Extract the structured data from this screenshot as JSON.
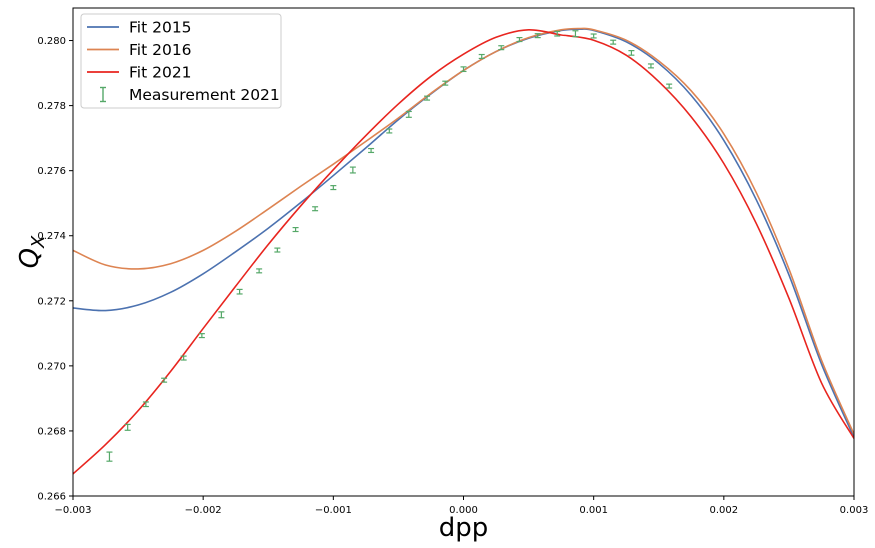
{
  "chart_data": {
    "type": "line",
    "title": "",
    "xlabel": "dpp",
    "ylabel": "Q",
    "ylabel_subscript": "X",
    "xlim": [
      -0.003,
      0.003
    ],
    "ylim": [
      0.266,
      0.281
    ],
    "xticks": [
      -0.003,
      -0.002,
      -0.001,
      0.0,
      0.001,
      0.002,
      0.003
    ],
    "xtick_labels": [
      "−0.003",
      "−0.002",
      "−0.001",
      "0.000",
      "0.001",
      "0.002",
      "0.003"
    ],
    "yticks": [
      0.266,
      0.268,
      0.27,
      0.272,
      0.274,
      0.276,
      0.278,
      0.28
    ],
    "ytick_labels": [
      "0.266",
      "0.268",
      "0.270",
      "0.272",
      "0.274",
      "0.276",
      "0.278",
      "0.280"
    ],
    "grid": false,
    "legend_position": "top-left",
    "series": [
      {
        "name": "Fit 2015",
        "kind": "line",
        "color": "#4c72b0",
        "x": [
          -0.003,
          -0.00275,
          -0.0025,
          -0.00225,
          -0.002,
          -0.00175,
          -0.0015,
          -0.00125,
          -0.001,
          -0.00075,
          -0.0005,
          -0.00025,
          0.0,
          0.00025,
          0.0005,
          0.00075,
          0.0009,
          0.001,
          0.00125,
          0.0015,
          0.00175,
          0.002,
          0.00225,
          0.0025,
          0.00275,
          0.003
        ],
        "y": [
          0.27178,
          0.2717,
          0.27187,
          0.27226,
          0.27283,
          0.27351,
          0.27423,
          0.27502,
          0.27585,
          0.2767,
          0.27757,
          0.27836,
          0.27908,
          0.27966,
          0.28007,
          0.28031,
          0.28035,
          0.28031,
          0.27996,
          0.2793,
          0.27831,
          0.27693,
          0.2751,
          0.2728,
          0.27006,
          0.2678
        ]
      },
      {
        "name": "Fit 2016",
        "kind": "line",
        "color": "#dd8452",
        "x": [
          -0.003,
          -0.00275,
          -0.0025,
          -0.00225,
          -0.002,
          -0.00175,
          -0.0015,
          -0.00125,
          -0.001,
          -0.00075,
          -0.0005,
          -0.00025,
          0.0,
          0.00025,
          0.0005,
          0.00075,
          0.0009,
          0.001,
          0.00125,
          0.0015,
          0.00175,
          0.002,
          0.00225,
          0.0025,
          0.00275,
          0.003
        ],
        "y": [
          0.27355,
          0.2731,
          0.27298,
          0.27314,
          0.27355,
          0.27414,
          0.27482,
          0.27552,
          0.2762,
          0.2769,
          0.27762,
          0.27838,
          0.27908,
          0.27966,
          0.28009,
          0.28033,
          0.28037,
          0.28033,
          0.28001,
          0.27937,
          0.27845,
          0.27713,
          0.27532,
          0.27298,
          0.27018,
          0.2679
        ]
      },
      {
        "name": "Fit 2021",
        "kind": "line",
        "color": "#e8251f",
        "x": [
          -0.003,
          -0.00275,
          -0.0025,
          -0.00225,
          -0.002,
          -0.00175,
          -0.0015,
          -0.00125,
          -0.001,
          -0.00075,
          -0.0005,
          -0.00025,
          0.0,
          0.00025,
          0.0005,
          0.00075,
          0.0008,
          0.001,
          0.00125,
          0.0015,
          0.00175,
          0.002,
          0.00225,
          0.0025,
          0.00275,
          0.003
        ],
        "y": [
          0.26668,
          0.26758,
          0.26862,
          0.26983,
          0.27115,
          0.27245,
          0.27373,
          0.27492,
          0.27603,
          0.27708,
          0.27805,
          0.2789,
          0.27958,
          0.2801,
          0.28033,
          0.28017,
          0.28015,
          0.28001,
          0.27955,
          0.27874,
          0.27765,
          0.27622,
          0.27437,
          0.27208,
          0.26948,
          0.26777
        ]
      },
      {
        "name": "Measurement 2021",
        "kind": "errorbar",
        "color": "#55a868",
        "x": [
          -0.00272,
          -0.00258,
          -0.00244,
          -0.0023,
          -0.00215,
          -0.00201,
          -0.00186,
          -0.00172,
          -0.00157,
          -0.00143,
          -0.00129,
          -0.00114,
          -0.001,
          -0.00085,
          -0.00071,
          -0.00057,
          -0.00042,
          -0.00028,
          -0.00014,
          0.0,
          0.00014,
          0.00029,
          0.00043,
          0.00057,
          0.00072,
          0.00086,
          0.001,
          0.00115,
          0.00129,
          0.00144,
          0.00158
        ],
        "y": [
          0.26721,
          0.26811,
          0.26882,
          0.26956,
          0.27024,
          0.27093,
          0.27157,
          0.27228,
          0.27292,
          0.27356,
          0.27419,
          0.27483,
          0.27548,
          0.27602,
          0.27662,
          0.27722,
          0.27773,
          0.27823,
          0.27869,
          0.27912,
          0.27951,
          0.27978,
          0.28003,
          0.28015,
          0.28021,
          0.28021,
          0.28014,
          0.27995,
          0.27962,
          0.27922,
          0.2786
        ],
        "yerr": [
          0.00014,
          9e-05,
          7e-05,
          6e-05,
          6e-05,
          6e-05,
          9e-05,
          7e-05,
          6e-05,
          6e-05,
          6e-05,
          6e-05,
          6e-05,
          9e-05,
          6e-05,
          6e-05,
          9e-05,
          6e-05,
          6e-05,
          7e-05,
          6e-05,
          6e-05,
          6e-05,
          6e-05,
          7e-05,
          9e-05,
          6e-05,
          6e-05,
          7e-05,
          6e-05,
          6e-05
        ]
      }
    ]
  }
}
